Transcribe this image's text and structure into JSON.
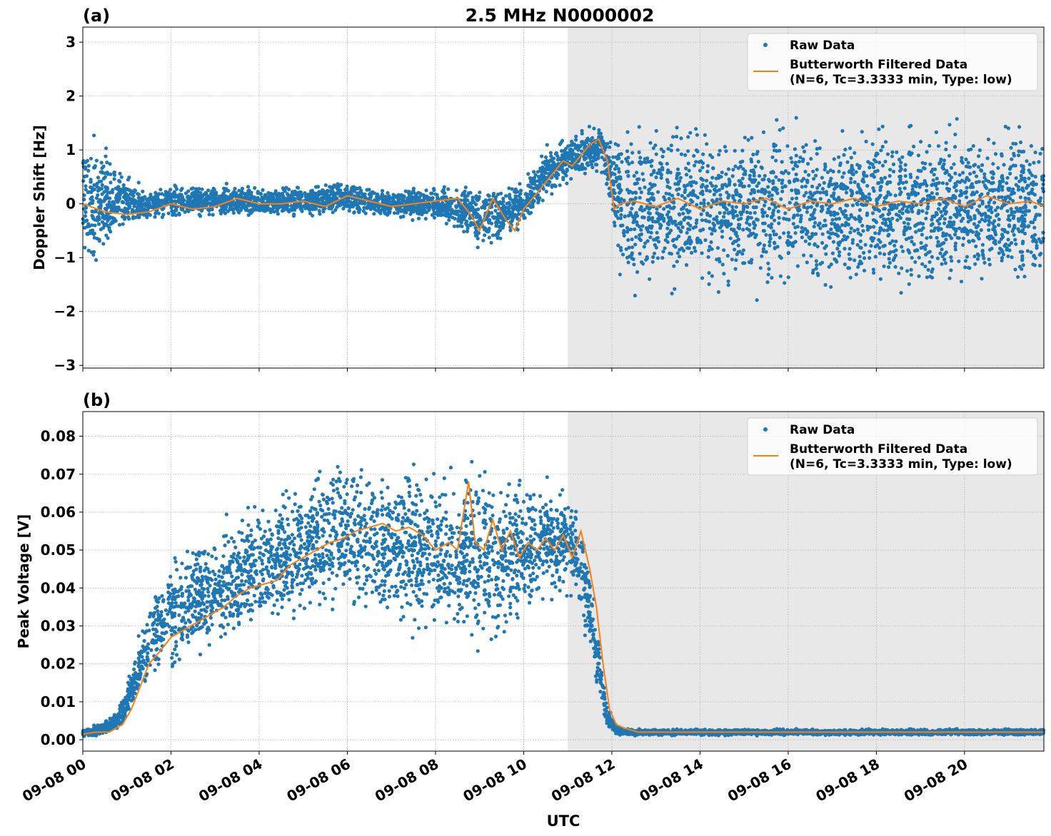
{
  "figure": {
    "title": "2.5 MHz N0000002",
    "xlabel": "UTC"
  },
  "chart_data": [
    {
      "type": "scatter",
      "panel_label": "(a)",
      "title": "2.5 MHz N0000002",
      "ylabel": "Doppler Shift [Hz]",
      "xlabel": "",
      "x_unit": "hours since 09-08 00 UTC",
      "xlim": [
        0,
        21.8
      ],
      "ylim": [
        -3.05,
        3.28
      ],
      "yticks": [
        3,
        2,
        1,
        0,
        -1,
        -2,
        -3
      ],
      "ytick_labels": [
        "3",
        "2",
        "1",
        "0",
        "−1",
        "−2",
        "−3"
      ],
      "grid": true,
      "shaded_region": {
        "x_start": 11.0,
        "x_end": 21.8,
        "color": "#e8e8e8"
      },
      "legend": {
        "placement": "top-right",
        "entries": [
          {
            "label": "Raw Data",
            "marker": "dot",
            "color": "#1f77b4"
          },
          {
            "label": "Butterworth Filtered Data",
            "label2": "(N=6, Tc=3.3333 min, Type: low)",
            "marker": "line",
            "color": "#ff7f0e"
          }
        ]
      },
      "series": [
        {
          "name": "Raw Data",
          "color": "#1f77b4",
          "envelope": {
            "x": [
              0,
              0.5,
              1.0,
              1.5,
              2.0,
              3.0,
              4.0,
              5.0,
              6.0,
              7.0,
              8.0,
              8.5,
              9.0,
              9.5,
              10.0,
              10.5,
              11.0,
              11.5,
              11.8,
              12.0,
              12.2,
              13,
              14,
              15,
              16,
              17,
              18,
              19,
              20,
              21,
              21.8
            ],
            "upper": [
              1.6,
              1.3,
              0.6,
              0.3,
              0.4,
              0.4,
              0.35,
              0.4,
              0.45,
              0.3,
              0.35,
              0.5,
              0.4,
              0.4,
              0.5,
              1.1,
              1.3,
              1.5,
              1.6,
              1.3,
              1.7,
              1.8,
              1.8,
              1.8,
              1.8,
              1.8,
              1.8,
              1.8,
              1.8,
              1.8,
              1.7
            ],
            "lower": [
              -1.5,
              -1.1,
              -0.6,
              -0.4,
              -0.3,
              -0.3,
              -0.3,
              -0.3,
              -0.25,
              -0.3,
              -0.35,
              -0.6,
              -0.9,
              -0.8,
              -0.5,
              0.0,
              0.3,
              0.55,
              0.5,
              -0.5,
              -1.8,
              -1.9,
              -1.9,
              -1.9,
              -1.9,
              -1.9,
              -1.9,
              -1.9,
              -1.9,
              -1.9,
              -1.9
            ]
          }
        },
        {
          "name": "Butterworth Filtered Data",
          "color": "#ff7f0e",
          "x": [
            0,
            0.5,
            1.0,
            1.5,
            2.0,
            2.5,
            3.0,
            3.5,
            4.0,
            4.5,
            5.0,
            5.5,
            6.0,
            6.5,
            7.0,
            7.5,
            8.0,
            8.5,
            8.8,
            9.0,
            9.3,
            9.6,
            9.8,
            10.0,
            10.3,
            10.6,
            10.9,
            11.1,
            11.3,
            11.5,
            11.7,
            11.9,
            12.05,
            12.2,
            12.5,
            13,
            13.5,
            14,
            14.5,
            15,
            15.5,
            16,
            16.5,
            17,
            17.5,
            18,
            18.5,
            19,
            19.5,
            20,
            20.5,
            21,
            21.5,
            21.8
          ],
          "y": [
            0.0,
            -0.15,
            -0.2,
            -0.15,
            0.0,
            -0.1,
            -0.05,
            0.1,
            0.0,
            0.0,
            0.05,
            -0.05,
            0.15,
            0.05,
            -0.05,
            0.0,
            0.05,
            0.1,
            -0.2,
            -0.5,
            0.1,
            -0.3,
            -0.5,
            -0.1,
            0.2,
            0.5,
            0.8,
            0.7,
            0.9,
            1.1,
            1.2,
            0.8,
            -0.1,
            0.0,
            0.05,
            -0.05,
            0.1,
            -0.1,
            0.05,
            0.0,
            0.1,
            -0.1,
            0.05,
            0.0,
            0.1,
            -0.05,
            0.05,
            0.0,
            0.1,
            -0.05,
            0.15,
            0.0,
            0.05,
            -0.05
          ]
        }
      ]
    },
    {
      "type": "scatter",
      "panel_label": "(b)",
      "title": "",
      "ylabel": "Peak Voltage [V]",
      "xlabel": "UTC",
      "x_unit": "hours since 09-08 00 UTC",
      "xlim": [
        0,
        21.8
      ],
      "ylim": [
        -0.003,
        0.0865
      ],
      "yticks": [
        0.08,
        0.07,
        0.06,
        0.05,
        0.04,
        0.03,
        0.02,
        0.01,
        0.0
      ],
      "ytick_labels": [
        "0.08",
        "0.07",
        "0.06",
        "0.05",
        "0.04",
        "0.03",
        "0.02",
        "0.01",
        "0.00"
      ],
      "xticks": [
        0,
        2,
        4,
        6,
        8,
        10,
        12,
        14,
        16,
        18,
        20
      ],
      "xtick_labels": [
        "09-08 00",
        "09-08 02",
        "09-08 04",
        "09-08 06",
        "09-08 08",
        "09-08 10",
        "09-08 12",
        "09-08 14",
        "09-08 16",
        "09-08 18",
        "09-08 20"
      ],
      "grid": true,
      "shaded_region": {
        "x_start": 11.0,
        "x_end": 21.8,
        "color": "#e8e8e8"
      },
      "legend": {
        "placement": "top-right",
        "entries": [
          {
            "label": "Raw Data",
            "marker": "dot",
            "color": "#1f77b4"
          },
          {
            "label": "Butterworth Filtered Data",
            "label2": "(N=6, Tc=3.3333 min, Type: low)",
            "marker": "line",
            "color": "#ff7f0e"
          }
        ]
      },
      "series": [
        {
          "name": "Raw Data",
          "color": "#1f77b4",
          "envelope": {
            "x": [
              0,
              0.5,
              0.8,
              1.0,
              1.2,
              1.5,
              2.0,
              2.5,
              3.0,
              3.5,
              4.0,
              4.5,
              5.0,
              5.5,
              6.0,
              6.5,
              7.0,
              7.5,
              8.0,
              8.5,
              9.0,
              9.5,
              10.0,
              10.5,
              11.0,
              11.3,
              11.5,
              11.7,
              11.9,
              12.1,
              12.3,
              13,
              14,
              15,
              16,
              17,
              18,
              19,
              20,
              21,
              21.8
            ],
            "upper": [
              0.003,
              0.005,
              0.009,
              0.015,
              0.025,
              0.04,
              0.05,
              0.055,
              0.058,
              0.062,
              0.066,
              0.07,
              0.074,
              0.076,
              0.077,
              0.076,
              0.075,
              0.076,
              0.075,
              0.074,
              0.078,
              0.074,
              0.073,
              0.07,
              0.068,
              0.062,
              0.05,
              0.03,
              0.01,
              0.004,
              0.003,
              0.003,
              0.003,
              0.003,
              0.003,
              0.003,
              0.003,
              0.003,
              0.003,
              0.003,
              0.003
            ],
            "lower": [
              0.0005,
              0.001,
              0.002,
              0.004,
              0.008,
              0.012,
              0.015,
              0.018,
              0.02,
              0.022,
              0.025,
              0.026,
              0.028,
              0.03,
              0.03,
              0.028,
              0.028,
              0.025,
              0.025,
              0.025,
              0.02,
              0.022,
              0.03,
              0.033,
              0.035,
              0.03,
              0.02,
              0.008,
              0.002,
              0.001,
              0.001,
              0.001,
              0.001,
              0.001,
              0.001,
              0.001,
              0.001,
              0.001,
              0.001,
              0.001,
              0.001
            ]
          }
        },
        {
          "name": "Butterworth Filtered Data",
          "color": "#ff7f0e",
          "x": [
            0,
            0.3,
            0.6,
            0.9,
            1.1,
            1.3,
            1.5,
            1.8,
            2.0,
            2.3,
            2.6,
            2.9,
            3.2,
            3.5,
            3.8,
            4.1,
            4.4,
            4.7,
            5.0,
            5.3,
            5.6,
            5.9,
            6.2,
            6.5,
            6.8,
            7.1,
            7.4,
            7.7,
            8.0,
            8.3,
            8.5,
            8.75,
            8.9,
            9.1,
            9.3,
            9.5,
            9.7,
            9.9,
            10.1,
            10.3,
            10.5,
            10.7,
            10.9,
            11.1,
            11.3,
            11.5,
            11.65,
            11.8,
            11.95,
            12.1,
            12.3,
            12.6,
            13,
            14,
            15,
            16,
            17,
            18,
            19,
            20,
            21,
            21.8
          ],
          "y": [
            0.0015,
            0.002,
            0.002,
            0.004,
            0.008,
            0.014,
            0.02,
            0.024,
            0.027,
            0.029,
            0.031,
            0.033,
            0.035,
            0.038,
            0.04,
            0.041,
            0.042,
            0.046,
            0.048,
            0.05,
            0.052,
            0.053,
            0.055,
            0.056,
            0.057,
            0.055,
            0.056,
            0.054,
            0.05,
            0.052,
            0.05,
            0.068,
            0.052,
            0.05,
            0.058,
            0.05,
            0.055,
            0.048,
            0.052,
            0.05,
            0.053,
            0.05,
            0.054,
            0.048,
            0.055,
            0.045,
            0.035,
            0.02,
            0.008,
            0.004,
            0.003,
            0.002,
            0.002,
            0.002,
            0.002,
            0.002,
            0.002,
            0.002,
            0.002,
            0.002,
            0.002,
            0.002
          ]
        }
      ]
    }
  ]
}
